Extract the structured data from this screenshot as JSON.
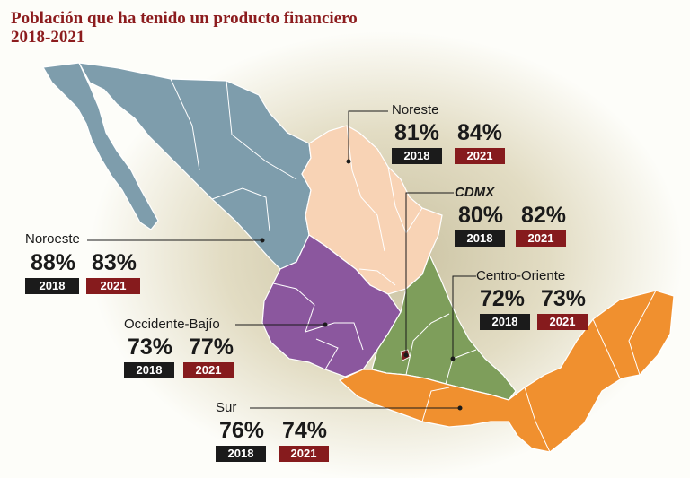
{
  "title_line1": "Población que ha tenido un producto financiero",
  "title_line2": "2018-2021",
  "colors": {
    "noroeste": "#7e9dac",
    "noreste": "#f8d3b5",
    "occidente_bajio": "#8b579e",
    "centro_oriente": "#7e9e5b",
    "sur": "#f0902f",
    "cdmx": "#7c1d1f",
    "label_2018": "#1b1b1b",
    "label_2021": "#861b1d"
  },
  "regions": {
    "noroeste": {
      "name": "Noroeste",
      "pct_2018": "88%",
      "pct_2021": "83%",
      "year_2018": "2018",
      "year_2021": "2021"
    },
    "noreste": {
      "name": "Noreste",
      "pct_2018": "81%",
      "pct_2021": "84%",
      "year_2018": "2018",
      "year_2021": "2021"
    },
    "cdmx": {
      "name": "CDMX",
      "pct_2018": "80%",
      "pct_2021": "82%",
      "year_2018": "2018",
      "year_2021": "2021"
    },
    "centro_oriente": {
      "name": "Centro-Oriente",
      "pct_2018": "72%",
      "pct_2021": "73%",
      "year_2018": "2018",
      "year_2021": "2021"
    },
    "occidente_bajio": {
      "name": "Occidente-Bajío",
      "pct_2018": "73%",
      "pct_2021": "77%",
      "year_2018": "2018",
      "year_2021": "2021"
    },
    "sur": {
      "name": "Sur",
      "pct_2018": "76%",
      "pct_2021": "74%",
      "year_2018": "2018",
      "year_2021": "2021"
    }
  }
}
